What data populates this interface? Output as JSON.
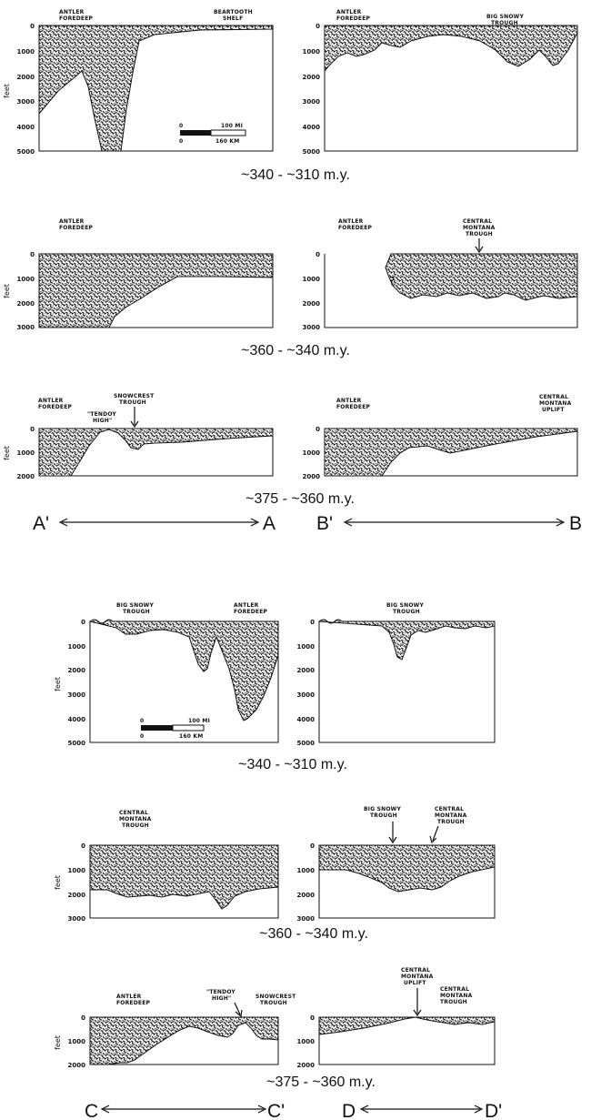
{
  "axis_unit": "feet",
  "scale_bar": {
    "start": "0",
    "mi": "100 MI",
    "km": "160 KM"
  },
  "groups": [
    {
      "sections": {
        "left": [
          "A'",
          "A"
        ],
        "right": [
          "B'",
          "B"
        ]
      },
      "rows": [
        {
          "age": "~340 - ~310 m.y.",
          "ticks": [
            "0",
            "1000",
            "2000",
            "3000",
            "4000",
            "5000"
          ],
          "left_labels": [
            [
              "ANTLER",
              "FOREDEEP"
            ],
            [
              "BEARTOOTH",
              "SHELF"
            ]
          ],
          "right_labels": [
            [
              "ANTLER",
              "FOREDEEP"
            ],
            [
              "BIG SNOWY",
              "TROUGH"
            ]
          ],
          "has_scale": true
        },
        {
          "age": "~360 - ~340 m.y.",
          "ticks": [
            "0",
            "1000",
            "2000",
            "3000"
          ],
          "left_labels": [
            [
              "ANTLER",
              "FOREDEEP"
            ]
          ],
          "right_labels": [
            [
              "ANTLER",
              "FOREDEEP"
            ],
            [
              "CENTRAL",
              "MONTANA",
              "TROUGH"
            ]
          ],
          "question_mark": "?"
        },
        {
          "age": "~375 - ~360 m.y.",
          "ticks": [
            "0",
            "1000",
            "2000"
          ],
          "left_labels": [
            [
              "ANTLER",
              "FOREDEEP"
            ],
            [
              "\"TENDOY",
              "HIGH\""
            ],
            [
              "SNOWCREST",
              "TROUGH"
            ]
          ],
          "right_labels": [
            [
              "ANTLER",
              "FOREDEEP"
            ],
            [
              "CENTRAL",
              "MONTANA",
              "UPLIFT"
            ]
          ]
        }
      ]
    },
    {
      "sections": {
        "left": [
          "C",
          "C'"
        ],
        "right": [
          "D",
          "D'"
        ]
      },
      "rows": [
        {
          "age": "~340 - ~310 m.y.",
          "ticks": [
            "0",
            "1000",
            "2000",
            "3000",
            "4000",
            "5000"
          ],
          "left_labels": [
            [
              "BIG SNOWY",
              "TROUGH"
            ],
            [
              "ANTLER",
              "FOREDEEP"
            ]
          ],
          "right_labels": [
            [
              "BIG SNOWY",
              "TROUGH"
            ]
          ],
          "has_scale": true
        },
        {
          "age": "~360 - ~340 m.y.",
          "ticks": [
            "0",
            "1000",
            "2000",
            "3000"
          ],
          "left_labels": [
            [
              "CENTRAL",
              "MONTANA",
              "TROUGH"
            ]
          ],
          "right_labels": [
            [
              "BIG SNOWY",
              "TROUGH"
            ],
            [
              "CENTRAL",
              "MONTANA",
              "TROUGH"
            ]
          ]
        },
        {
          "age": "~375 - ~360 m.y.",
          "ticks": [
            "0",
            "1000",
            "2000"
          ],
          "left_labels": [
            [
              "ANTLER",
              "FOREDEEP"
            ],
            [
              "\"TENDOY",
              "HIGH\""
            ],
            [
              "SNOWCREST",
              "TROUGH"
            ]
          ],
          "right_labels": [
            [
              "CENTRAL",
              "MONTANA",
              "UPLIFT"
            ],
            [
              "CENTRAL",
              "MONTANA",
              "TROUGH"
            ]
          ]
        }
      ]
    }
  ]
}
